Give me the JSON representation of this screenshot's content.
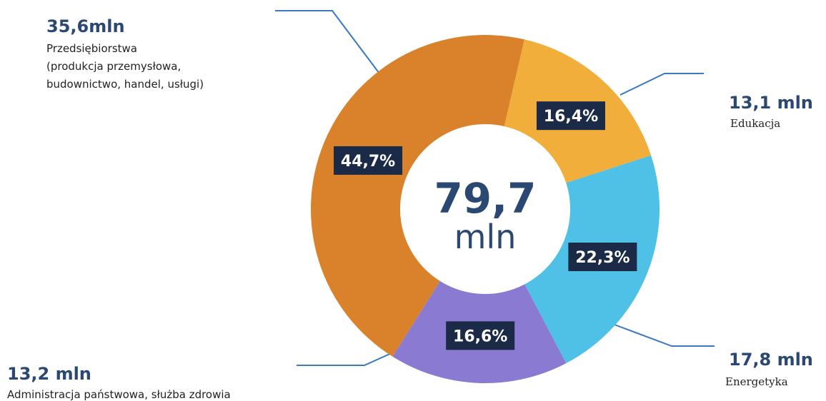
{
  "chart_data": {
    "type": "pie",
    "categories": [
      "Edukacja",
      "Energetyka",
      "Administracja państwowa, służba zdrowia",
      "Przedsiębiorstwa"
    ],
    "notes": [
      "(produkcja przemysłowa,",
      "budownictwo, handel, usługi)"
    ],
    "amount_labels": [
      "13,1 mln",
      "17,8 mln",
      "13,2 mln",
      "35,6mln"
    ],
    "values": [
      16.4,
      22.3,
      16.6,
      44.7
    ],
    "value_labels": [
      "16,4%",
      "22,3%",
      "16,6%",
      "44,7%"
    ],
    "colors": [
      "#f2ae3a",
      "#4fc1e6",
      "#8a7ad2",
      "#d9822b"
    ],
    "center_label": [
      "79,7",
      "mln"
    ]
  }
}
